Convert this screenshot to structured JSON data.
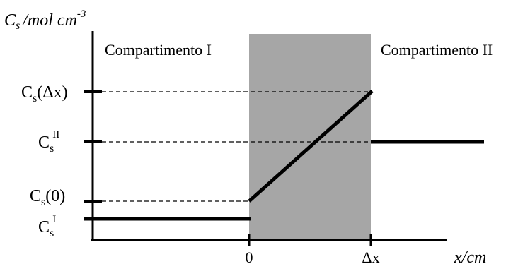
{
  "y_axis": {
    "var": "C",
    "sub": "s",
    "unit": "/mol cm",
    "exp": "-3"
  },
  "x_axis": {
    "label": "x/cm"
  },
  "regions": {
    "left": "Compartimento I",
    "right": "Compartimento II"
  },
  "y_ticks": {
    "cs_dx": {
      "main": "C",
      "sub": "s",
      "arg": "(Δx)"
    },
    "cs_ii": {
      "main": "C",
      "sub": "s",
      "sup": "II"
    },
    "cs_0": {
      "main": "C",
      "sub": "s",
      "arg": "(0)"
    },
    "cs_i": {
      "main": "C",
      "sub": "s",
      "sup": "I"
    }
  },
  "x_ticks": {
    "zero": "0",
    "dx": "Δx"
  },
  "colors": {
    "membrane": "#a6a6a6",
    "line": "#000000",
    "background": "#ffffff"
  }
}
